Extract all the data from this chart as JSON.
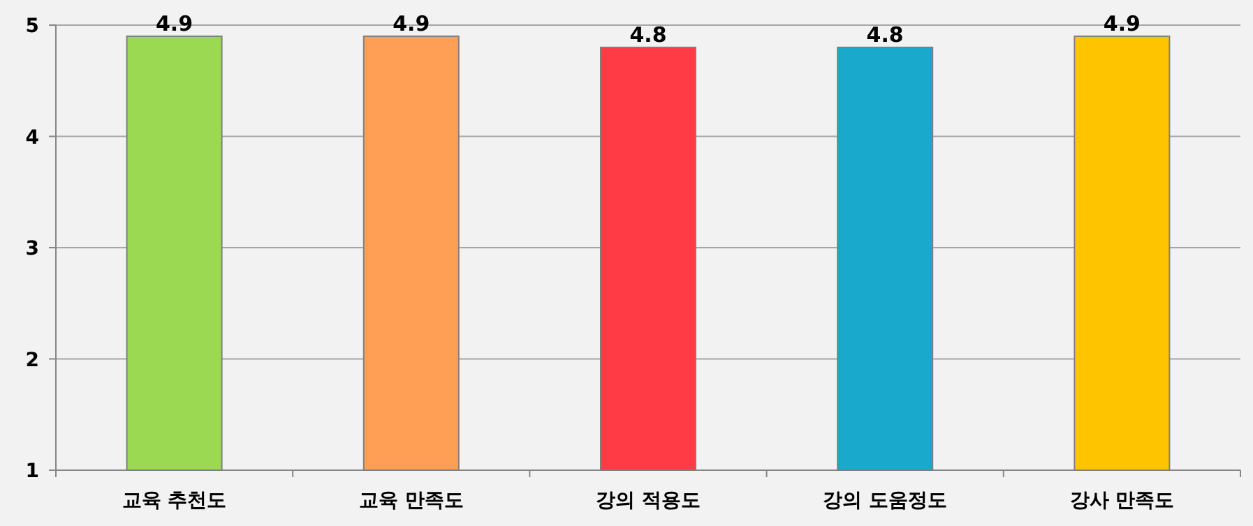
{
  "chart_data": {
    "type": "bar",
    "categories": [
      "교육 추천도",
      "교육 만족도",
      "강의 적용도",
      "강의 도움정도",
      "강사 만족도"
    ],
    "values": [
      4.9,
      4.9,
      4.8,
      4.8,
      4.9
    ],
    "colors": [
      "#9bd953",
      "#ff9f55",
      "#ff3b45",
      "#18a9cc",
      "#ffc400"
    ],
    "ylim": [
      1,
      5
    ],
    "yticks": [
      1,
      2,
      3,
      4,
      5
    ],
    "grid": "y",
    "data_labels": true
  }
}
